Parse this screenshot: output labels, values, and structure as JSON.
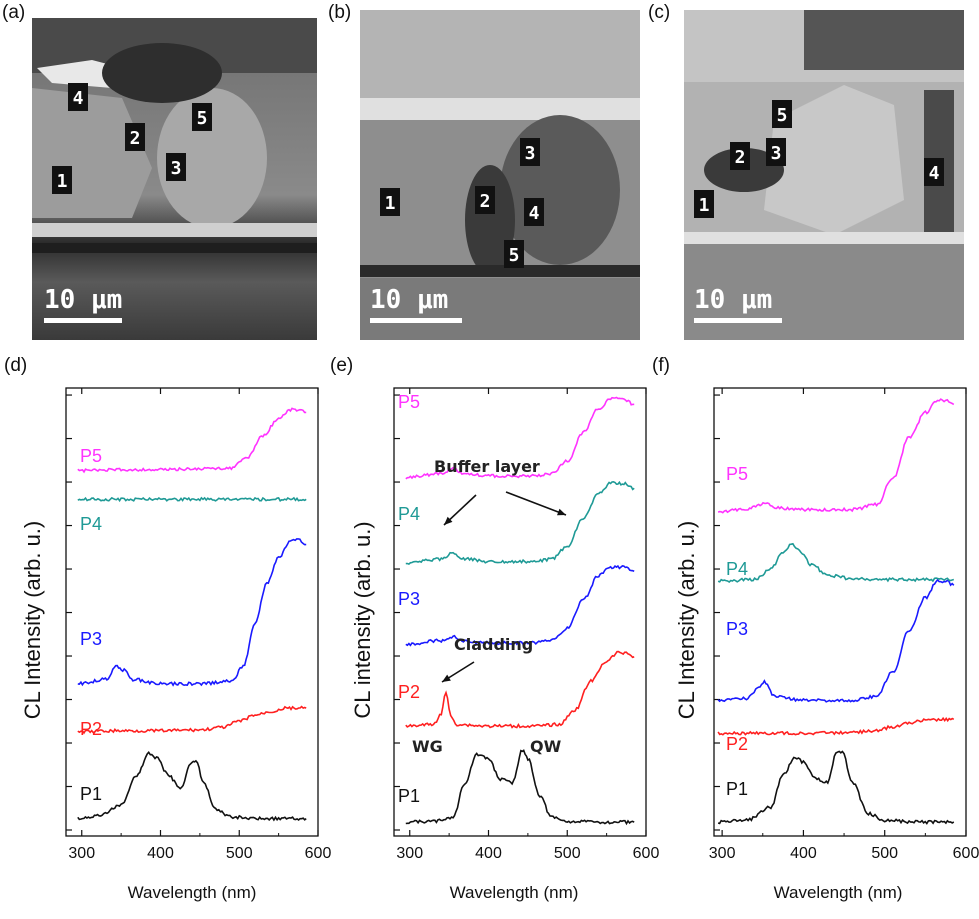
{
  "panels": {
    "a": "(a)",
    "b": "(b)",
    "c": "(c)",
    "d": "(d)",
    "e": "(e)",
    "f": "(f)"
  },
  "sem_images": [
    {
      "scale_bar": "10 μm",
      "markers": [
        "4",
        "2",
        "5",
        "3",
        "1"
      ]
    },
    {
      "scale_bar": "10 μm",
      "markers": [
        "3",
        "1",
        "2",
        "4",
        "5"
      ]
    },
    {
      "scale_bar": "10 μm",
      "markers": [
        "5",
        "2",
        "3",
        "4",
        "1"
      ]
    }
  ],
  "colors": {
    "P1": "#111111",
    "P2": "#ff2020",
    "P3": "#1a1aff",
    "P4": "#1f9a96",
    "P5": "#ff33ff"
  },
  "chart_data": [
    {
      "type": "line",
      "panel": "(d)",
      "xlabel": "Wavelength (nm)",
      "ylabel": "CL Intensity (arb. u.)",
      "xlim": [
        280,
        600
      ],
      "xticks": [
        300,
        400,
        500,
        600
      ],
      "series": [
        {
          "name": "P1",
          "x": [
            295,
            320,
            350,
            370,
            385,
            395,
            410,
            425,
            440,
            445,
            455,
            470,
            490,
            520,
            560,
            585
          ],
          "y": [
            0.05,
            0.08,
            0.2,
            0.55,
            0.8,
            0.75,
            0.55,
            0.4,
            0.7,
            0.72,
            0.45,
            0.15,
            0.07,
            0.05,
            0.05,
            0.05
          ]
        },
        {
          "name": "P2",
          "x": [
            295,
            350,
            400,
            450,
            480,
            500,
            520,
            540,
            560,
            585
          ],
          "y": [
            1.05,
            1.06,
            1.06,
            1.07,
            1.1,
            1.17,
            1.24,
            1.28,
            1.32,
            1.32
          ]
        },
        {
          "name": "P3",
          "x": [
            295,
            330,
            345,
            352,
            365,
            400,
            450,
            490,
            505,
            520,
            535,
            550,
            565,
            575,
            585
          ],
          "y": [
            1.6,
            1.65,
            1.8,
            1.76,
            1.65,
            1.6,
            1.6,
            1.63,
            1.8,
            2.3,
            2.75,
            3.05,
            3.24,
            3.25,
            3.2
          ]
        },
        {
          "name": "P4",
          "x": [
            295,
            350,
            400,
            450,
            500,
            550,
            585
          ],
          "y": [
            3.72,
            3.72,
            3.72,
            3.72,
            3.72,
            3.72,
            3.72
          ]
        },
        {
          "name": "P5",
          "x": [
            295,
            350,
            400,
            450,
            490,
            510,
            530,
            550,
            565,
            575,
            585
          ],
          "y": [
            4.05,
            4.06,
            4.06,
            4.07,
            4.08,
            4.2,
            4.45,
            4.65,
            4.75,
            4.75,
            4.72
          ]
        }
      ],
      "series_labels": [
        "P5",
        "P4",
        "P3",
        "P2",
        "P1"
      ]
    },
    {
      "type": "line",
      "panel": "(e)",
      "xlabel": "Wavelength (nm)",
      "ylabel": "CL intensity (arb. u.)",
      "xlim": [
        280,
        600
      ],
      "xticks": [
        300,
        400,
        500,
        600
      ],
      "annotations": [
        "Buffer layer",
        "Cladding",
        "WG",
        "QW"
      ],
      "series": [
        {
          "name": "P1",
          "x": [
            295,
            330,
            355,
            370,
            385,
            400,
            415,
            430,
            443,
            450,
            465,
            480,
            500,
            540,
            585
          ],
          "y": [
            0.02,
            0.03,
            0.08,
            0.5,
            0.85,
            0.8,
            0.55,
            0.5,
            0.9,
            0.8,
            0.35,
            0.08,
            0.03,
            0.02,
            0.02
          ]
        },
        {
          "name": "P2",
          "x": [
            295,
            330,
            340,
            346,
            352,
            360,
            400,
            460,
            490,
            510,
            530,
            550,
            565,
            575,
            585
          ],
          "y": [
            1.2,
            1.22,
            1.35,
            1.62,
            1.32,
            1.22,
            1.2,
            1.2,
            1.22,
            1.4,
            1.75,
            2.0,
            2.1,
            2.1,
            2.05
          ]
        },
        {
          "name": "P3",
          "x": [
            295,
            340,
            355,
            370,
            400,
            460,
            480,
            500,
            520,
            540,
            555,
            570,
            585
          ],
          "y": [
            2.2,
            2.25,
            2.3,
            2.24,
            2.22,
            2.22,
            2.25,
            2.4,
            2.75,
            3.05,
            3.15,
            3.15,
            3.1
          ]
        },
        {
          "name": "P4",
          "x": [
            295,
            340,
            355,
            370,
            400,
            460,
            480,
            500,
            520,
            540,
            555,
            570,
            585
          ],
          "y": [
            3.2,
            3.25,
            3.32,
            3.25,
            3.22,
            3.22,
            3.25,
            3.4,
            3.75,
            4.05,
            4.18,
            4.18,
            4.12
          ]
        },
        {
          "name": "P5",
          "x": [
            295,
            340,
            355,
            370,
            400,
            460,
            480,
            500,
            520,
            540,
            555,
            570,
            585
          ],
          "y": [
            4.25,
            4.3,
            4.36,
            4.3,
            4.27,
            4.27,
            4.3,
            4.45,
            4.8,
            5.1,
            5.22,
            5.22,
            5.15
          ]
        }
      ],
      "series_labels": [
        "P5",
        "P4",
        "P3",
        "P2",
        "P1"
      ]
    },
    {
      "type": "line",
      "panel": "(f)",
      "xlabel": "Wavelength (nm)",
      "ylabel": "CL Intensity (arb. u.)",
      "xlim": [
        290,
        600
      ],
      "xticks": [
        300,
        400,
        500,
        600
      ],
      "series": [
        {
          "name": "P1",
          "x": [
            295,
            330,
            360,
            375,
            390,
            400,
            415,
            430,
            440,
            448,
            460,
            480,
            500,
            540,
            585
          ],
          "y": [
            0.02,
            0.04,
            0.2,
            0.6,
            0.8,
            0.75,
            0.55,
            0.5,
            0.85,
            0.88,
            0.5,
            0.12,
            0.04,
            0.02,
            0.02
          ]
        },
        {
          "name": "P2",
          "x": [
            295,
            400,
            460,
            490,
            510,
            530,
            550,
            570,
            585
          ],
          "y": [
            1.1,
            1.1,
            1.11,
            1.13,
            1.18,
            1.23,
            1.26,
            1.27,
            1.27
          ]
        },
        {
          "name": "P3",
          "x": [
            295,
            330,
            345,
            352,
            365,
            400,
            460,
            490,
            510,
            530,
            550,
            565,
            575,
            585
          ],
          "y": [
            1.5,
            1.52,
            1.65,
            1.72,
            1.55,
            1.5,
            1.5,
            1.55,
            1.85,
            2.35,
            2.75,
            2.95,
            2.95,
            2.9
          ]
        },
        {
          "name": "P4",
          "x": [
            295,
            340,
            360,
            375,
            385,
            395,
            410,
            430,
            460,
            500,
            585
          ],
          "y": [
            2.95,
            2.97,
            3.1,
            3.3,
            3.4,
            3.32,
            3.15,
            3.02,
            2.98,
            2.97,
            2.97
          ]
        },
        {
          "name": "P5",
          "x": [
            295,
            330,
            345,
            352,
            365,
            400,
            460,
            490,
            510,
            530,
            550,
            565,
            575,
            585
          ],
          "y": [
            3.8,
            3.82,
            3.87,
            3.9,
            3.84,
            3.82,
            3.82,
            3.88,
            4.2,
            4.7,
            5.0,
            5.15,
            5.15,
            5.1
          ]
        }
      ],
      "series_labels": [
        "P5",
        "P4",
        "P3",
        "P2",
        "P1"
      ]
    }
  ]
}
